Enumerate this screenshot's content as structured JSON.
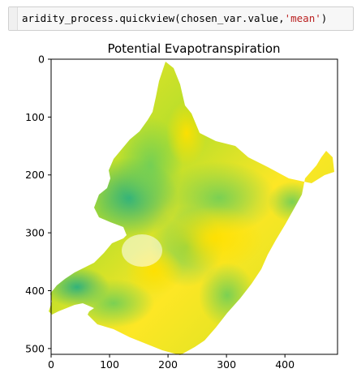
{
  "code_cell": {
    "prefix": "aridity_process.quickview(chosen_var.value,",
    "string_arg": "'mean'",
    "suffix": ")"
  },
  "chart_data": {
    "type": "heatmap",
    "title": "Potential Evapotranspiration",
    "xlabel": "",
    "ylabel": "",
    "xlim": [
      0,
      490
    ],
    "ylim": [
      510,
      0
    ],
    "xticks": [
      0,
      100,
      200,
      300,
      400
    ],
    "yticks": [
      0,
      100,
      200,
      300,
      400,
      500
    ],
    "colormap": "viridis-upper (green to yellow)",
    "colors": {
      "low": "#2ab07f",
      "mid": "#7ad151",
      "high": "#fde725",
      "peak": "#ffe000"
    }
  }
}
